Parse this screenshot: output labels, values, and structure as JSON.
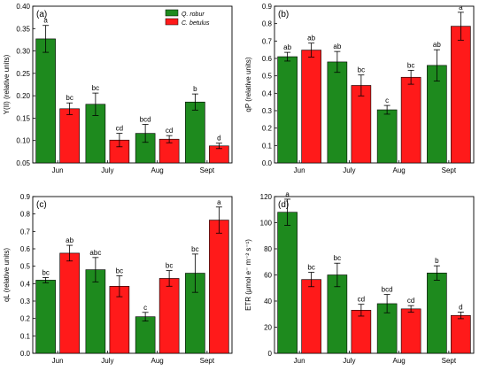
{
  "colors": {
    "q_robur": "#1e8a1e",
    "c_betulus": "#ff1a1a"
  },
  "legend": {
    "q_robur": "Q. robur",
    "c_betulus": "C. betulus"
  },
  "chart_data": [
    {
      "type": "bar",
      "panel": "(a)",
      "ylabel": "Y(II) (relative units)",
      "ylim": [
        0.05,
        0.4
      ],
      "yticks": [
        "0.05",
        "0.10",
        "0.15",
        "0.20",
        "0.25",
        "0.30",
        "0.35",
        "0.40"
      ],
      "categories": [
        "Jun",
        "July",
        "Aug",
        "Sept"
      ],
      "series": [
        {
          "name": "Q. robur",
          "values": [
            0.327,
            0.181,
            0.116,
            0.186
          ],
          "errors": [
            0.03,
            0.025,
            0.02,
            0.018
          ],
          "letters": [
            "a",
            "bc",
            "bcd",
            "b"
          ]
        },
        {
          "name": "C. betulus",
          "values": [
            0.171,
            0.101,
            0.103,
            0.088
          ],
          "errors": [
            0.013,
            0.015,
            0.008,
            0.006
          ],
          "letters": [
            "bc",
            "cd",
            "cd",
            "d"
          ]
        }
      ],
      "legend_position": "top-right"
    },
    {
      "type": "bar",
      "panel": "(b)",
      "ylabel": "qP (relative units)",
      "ylim": [
        0.0,
        0.9
      ],
      "yticks": [
        "0.0",
        "0.1",
        "0.2",
        "0.3",
        "0.4",
        "0.5",
        "0.6",
        "0.7",
        "0.8",
        "0.9"
      ],
      "categories": [
        "Jun",
        "July",
        "Aug",
        "Sept"
      ],
      "series": [
        {
          "name": "Q. robur",
          "values": [
            0.61,
            0.58,
            0.305,
            0.56
          ],
          "errors": [
            0.025,
            0.06,
            0.025,
            0.09
          ],
          "letters": [
            "ab",
            "ab",
            "c",
            "ab"
          ]
        },
        {
          "name": "C. betulus",
          "values": [
            0.648,
            0.445,
            0.492,
            0.785
          ],
          "errors": [
            0.04,
            0.06,
            0.04,
            0.08
          ],
          "letters": [
            "ab",
            "bc",
            "bc",
            "a"
          ]
        }
      ]
    },
    {
      "type": "bar",
      "panel": "(c)",
      "ylabel": "qL (relative units)",
      "ylim": [
        0.0,
        0.9
      ],
      "yticks": [
        "0.0",
        "0.1",
        "0.2",
        "0.3",
        "0.4",
        "0.5",
        "0.6",
        "0.7",
        "0.8",
        "0.9"
      ],
      "categories": [
        "Jun",
        "July",
        "Aug",
        "Sept"
      ],
      "series": [
        {
          "name": "Q. robur",
          "values": [
            0.42,
            0.48,
            0.21,
            0.46
          ],
          "errors": [
            0.015,
            0.07,
            0.025,
            0.11
          ],
          "letters": [
            "bc",
            "abc",
            "c",
            "bc"
          ]
        },
        {
          "name": "C. betulus",
          "values": [
            0.575,
            0.385,
            0.43,
            0.765
          ],
          "errors": [
            0.045,
            0.06,
            0.045,
            0.075
          ],
          "letters": [
            "ab",
            "bc",
            "bc",
            "a"
          ]
        }
      ]
    },
    {
      "type": "bar",
      "panel": "(d)",
      "ylabel": "ETR (µmol e⁻ m⁻² s⁻¹)",
      "ylim": [
        0,
        120
      ],
      "yticks": [
        "0",
        "20",
        "40",
        "60",
        "80",
        "100",
        "120"
      ],
      "categories": [
        "Jun",
        "July",
        "Aug",
        "Sept"
      ],
      "series": [
        {
          "name": "Q. robur",
          "values": [
            108,
            60,
            38,
            61.5
          ],
          "errors": [
            10,
            9,
            7,
            5.5
          ],
          "letters": [
            "a",
            "bc",
            "bcd",
            "b"
          ]
        },
        {
          "name": "C. betulus",
          "values": [
            56.5,
            33,
            34,
            29
          ],
          "errors": [
            5.5,
            4.5,
            2.5,
            2.5
          ],
          "letters": [
            "bc",
            "cd",
            "cd",
            "d"
          ]
        }
      ]
    }
  ]
}
